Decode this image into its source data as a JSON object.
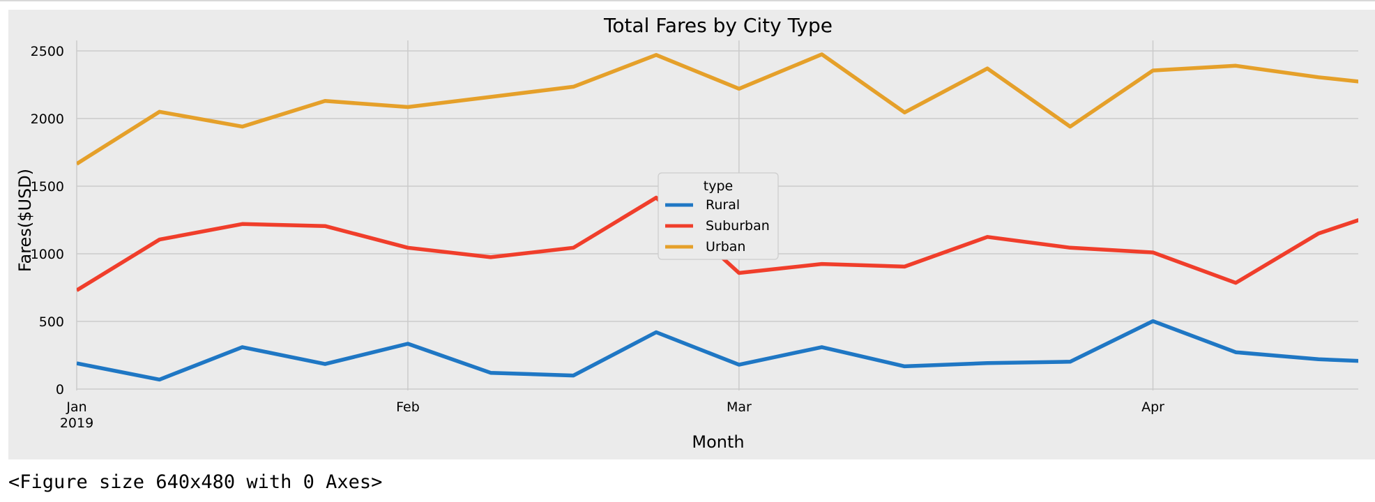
{
  "chart_data": {
    "type": "line",
    "title": "Total Fares by City Type",
    "xlabel": "Month",
    "ylabel": "Fares($USD)",
    "ylim": [
      0,
      2600
    ],
    "yticks": [
      0,
      500,
      1000,
      1500,
      2000,
      2500
    ],
    "xticks": [
      {
        "week": 0,
        "label": "Jan",
        "sublabel": "2019"
      },
      {
        "week": 4,
        "label": "Feb",
        "sublabel": ""
      },
      {
        "week": 8,
        "label": "Mar",
        "sublabel": ""
      },
      {
        "week": 13,
        "label": "Apr",
        "sublabel": ""
      }
    ],
    "x": [
      "2019-01-06",
      "2019-01-13",
      "2019-01-20",
      "2019-01-27",
      "2019-02-03",
      "2019-02-10",
      "2019-02-17",
      "2019-02-24",
      "2019-03-03",
      "2019-03-10",
      "2019-03-17",
      "2019-03-24",
      "2019-03-31",
      "2019-04-07",
      "2019-04-14",
      "2019-04-21",
      "2019-04-28"
    ],
    "grid": true,
    "legend": {
      "title": "type",
      "position": "center"
    },
    "series": [
      {
        "name": "Rural",
        "color": "#1f77c4",
        "values": [
          190,
          70,
          310,
          185,
          335,
          120,
          100,
          420,
          180,
          310,
          168,
          192,
          202,
          502,
          272,
          220,
          195
        ]
      },
      {
        "name": "Suburban",
        "color": "#f03e2b",
        "values": [
          730,
          1105,
          1220,
          1205,
          1045,
          975,
          1045,
          1415,
          858,
          925,
          905,
          1125,
          1045,
          1010,
          785,
          1150,
          1355
        ]
      },
      {
        "name": "Urban",
        "color": "#e5a02a",
        "values": [
          1665,
          2050,
          1940,
          2130,
          2085,
          2160,
          2235,
          2470,
          2220,
          2475,
          2045,
          2370,
          1940,
          2355,
          2390,
          2305,
          2240
        ]
      }
    ]
  },
  "caption": "<Figure size 640x480 with 0 Axes>"
}
